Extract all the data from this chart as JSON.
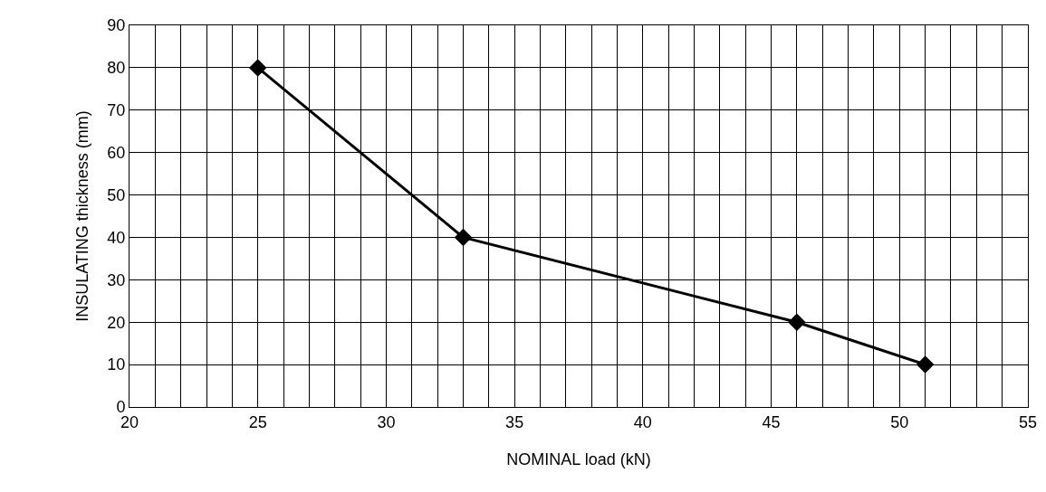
{
  "chart_data": {
    "type": "line",
    "xlabel": "NOMINAL load (kN)",
    "ylabel": "INSULATING thickness (mm)",
    "x": [
      25,
      33,
      46,
      51
    ],
    "series": [
      {
        "color": "#000000",
        "values": [
          80,
          40,
          20,
          10
        ]
      }
    ],
    "xlim": [
      20,
      55
    ],
    "xticks": [
      20,
      {
        "value": 21,
        "label": null
      },
      {
        "value": 22,
        "label": null
      },
      {
        "value": 23,
        "label": null
      },
      {
        "value": 24,
        "label": null
      },
      25,
      {
        "value": 26,
        "label": null
      },
      {
        "value": 27,
        "label": null
      },
      {
        "value": 28,
        "label": null
      },
      {
        "value": 29,
        "label": null
      },
      30,
      {
        "value": 31,
        "label": null
      },
      {
        "value": 32,
        "label": null
      },
      {
        "value": 33,
        "label": null
      },
      {
        "value": 34,
        "label": null
      },
      35,
      {
        "value": 36,
        "label": null
      },
      {
        "value": 37,
        "label": null
      },
      {
        "value": 38,
        "label": null
      },
      {
        "value": 39,
        "label": null
      },
      40,
      {
        "value": 41,
        "label": null
      },
      {
        "value": 42,
        "label": null
      },
      {
        "value": 43,
        "label": null
      },
      {
        "value": 44,
        "label": null
      },
      45,
      {
        "value": 46,
        "label": null
      },
      {
        "value": 47,
        "label": null
      },
      {
        "value": 48,
        "label": null
      },
      {
        "value": 49,
        "label": null
      },
      50,
      {
        "value": 51,
        "label": null
      },
      {
        "value": 52,
        "label": null
      },
      {
        "value": 53,
        "label": null
      },
      {
        "value": 54,
        "label": null
      },
      55
    ],
    "ylim": [
      0,
      90
    ],
    "yticks": [
      0,
      10,
      20,
      30,
      40,
      50,
      60,
      70,
      80,
      90
    ],
    "grid": true,
    "marker": "diamond",
    "line_style": "solid"
  }
}
